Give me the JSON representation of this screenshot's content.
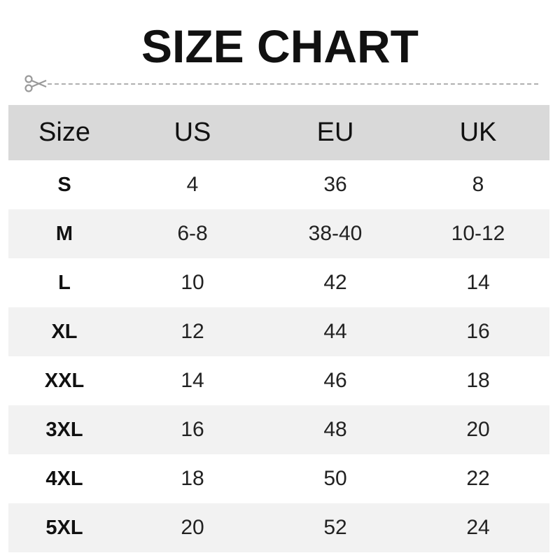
{
  "title": "SIZE CHART",
  "icons": {
    "cut_line": "scissors-icon"
  },
  "colors": {
    "header_bg": "#d9d9d9",
    "alt_row_bg": "#f2f2f2",
    "dash": "#b0b0b0"
  },
  "table": {
    "headers": [
      "Size",
      "US",
      "EU",
      "UK"
    ],
    "rows": [
      [
        "S",
        "4",
        "36",
        "8"
      ],
      [
        "M",
        "6-8",
        "38-40",
        "10-12"
      ],
      [
        "L",
        "10",
        "42",
        "14"
      ],
      [
        "XL",
        "12",
        "44",
        "16"
      ],
      [
        "XXL",
        "14",
        "46",
        "18"
      ],
      [
        "3XL",
        "16",
        "48",
        "20"
      ],
      [
        "4XL",
        "18",
        "50",
        "22"
      ],
      [
        "5XL",
        "20",
        "52",
        "24"
      ]
    ]
  }
}
